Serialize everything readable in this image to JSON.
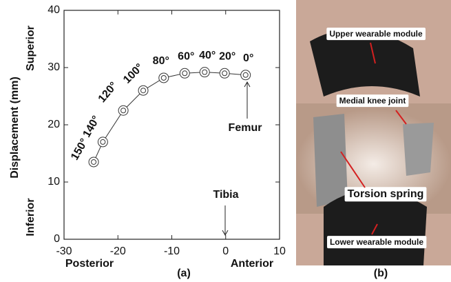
{
  "chart_data": {
    "type": "line",
    "x": [
      -24.5,
      -22.8,
      -19,
      -15.3,
      -11.5,
      -7.6,
      -3.9,
      -0.2,
      3.7
    ],
    "values": [
      13.5,
      17,
      22.5,
      26,
      28.2,
      29,
      29.2,
      29,
      28.7
    ],
    "point_labels": [
      "150°",
      "140°",
      "120°",
      "100°",
      "80°",
      "60°",
      "40°",
      "20°",
      "0°"
    ],
    "color": "#333333",
    "xlim": [
      -30,
      10
    ],
    "xticks": [
      -30,
      -20,
      -10,
      0,
      10
    ],
    "ylim": [
      0,
      40
    ],
    "yticks": [
      0,
      10,
      20,
      30,
      40
    ],
    "ylabel": "Displacement (mm)",
    "y_direction_labels": [
      "Superior",
      "Inferior"
    ],
    "x_direction_labels": [
      "Posterior",
      "Anterior"
    ],
    "annotations": [
      "Femur",
      "Tibia"
    ],
    "panel_label": "(a)"
  },
  "photo": {
    "panel_label": "(b)",
    "labels": [
      "Upper wearable module",
      "Medial knee joint",
      "Torsion spring",
      "Lower wearable module"
    ]
  }
}
